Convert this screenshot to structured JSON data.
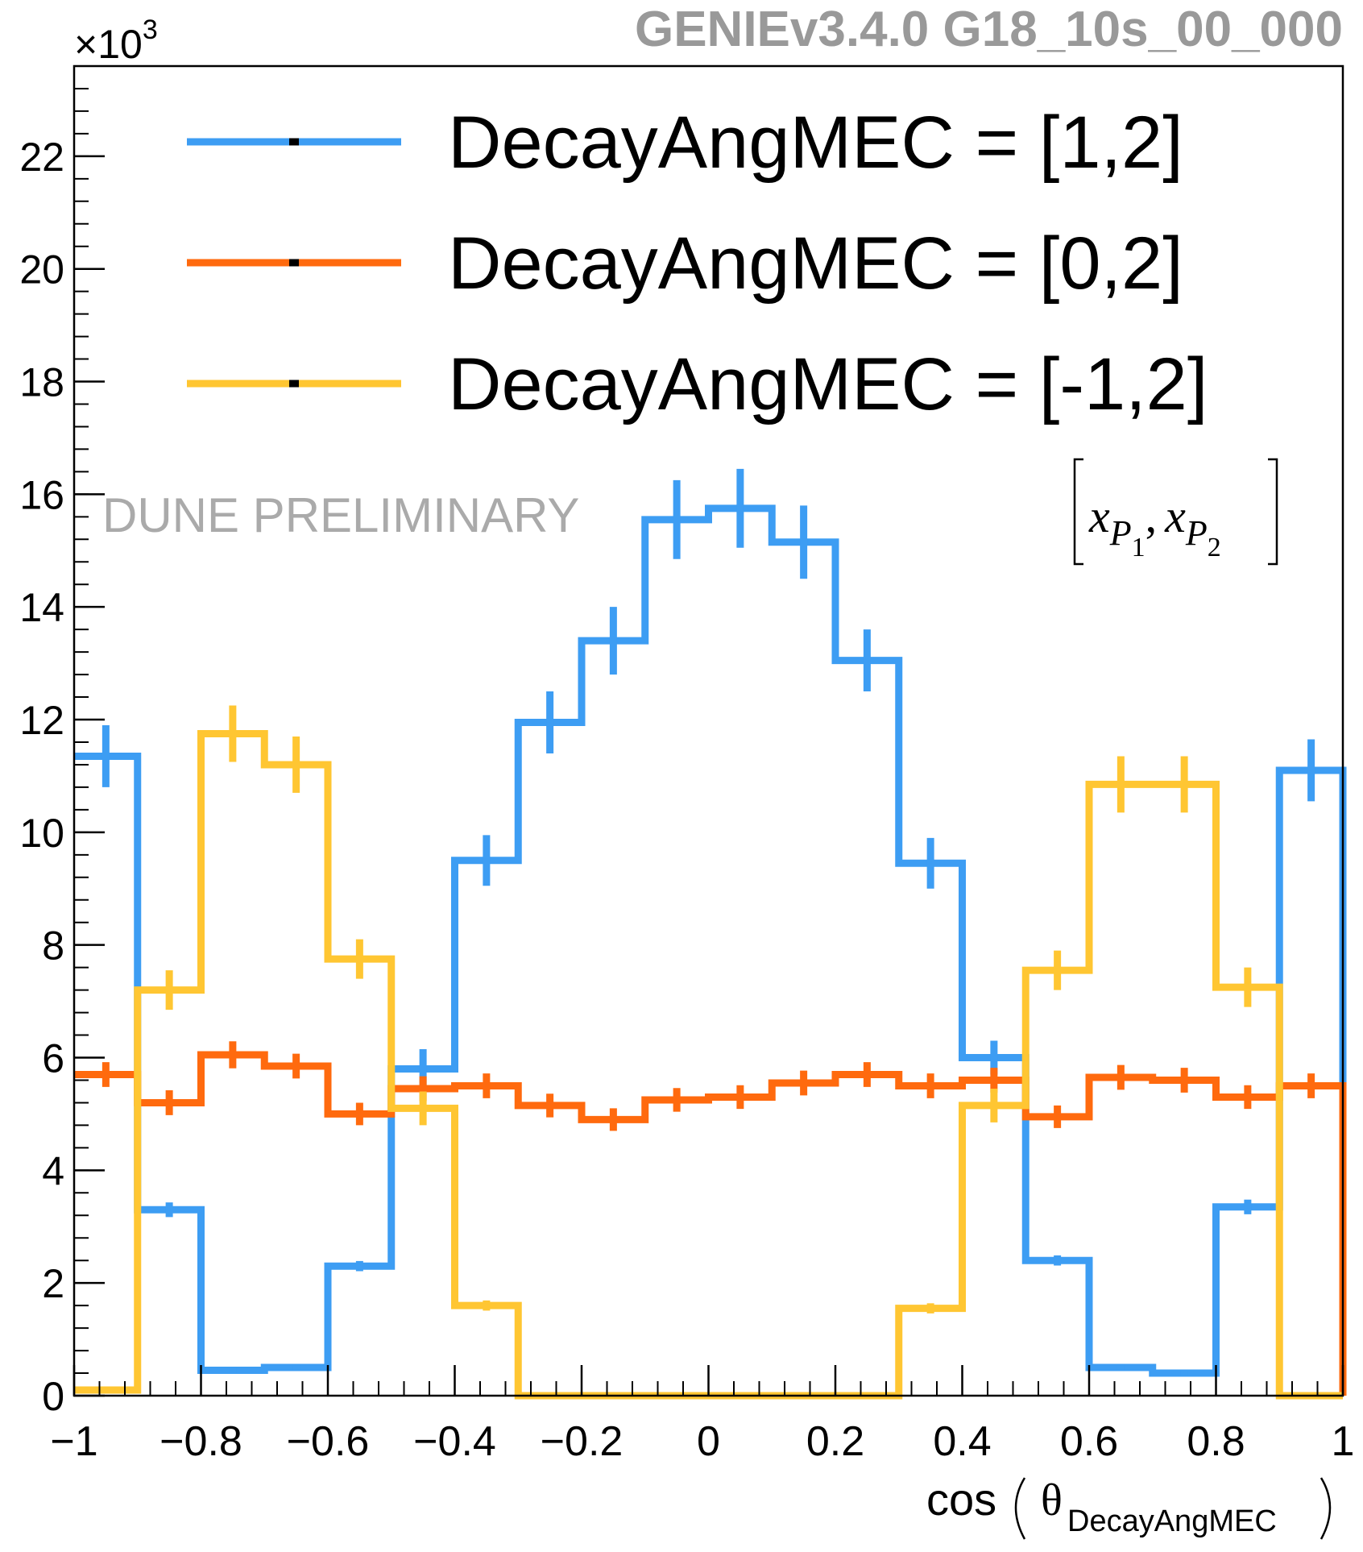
{
  "chart_data": {
    "type": "histogram-step",
    "title": "GENIEv3.4.0 G18_10s_00_000",
    "watermark": "DUNE PRELIMINARY",
    "xlabel_prefix": "cos",
    "xlabel_symbol": "θ",
    "xlabel_subscript": "DecayAngMEC",
    "ylabel": "",
    "y_multiplier": "×10",
    "y_multiplier_exp": "3",
    "xlim": [
      -1,
      1
    ],
    "ylim": [
      0,
      23.6
    ],
    "x_ticks": [
      -1,
      -0.8,
      -0.6,
      -0.4,
      -0.2,
      0,
      0.2,
      0.4,
      0.6,
      0.8,
      1
    ],
    "x_tick_labels": [
      "−1",
      "−0.8",
      "−0.6",
      "−0.4",
      "−0.2",
      "0",
      "0.2",
      "0.4",
      "0.6",
      "0.8",
      "1"
    ],
    "y_ticks": [
      0,
      2,
      4,
      6,
      8,
      10,
      12,
      14,
      16,
      18,
      20,
      22
    ],
    "y_tick_labels": [
      "0",
      "2",
      "4",
      "6",
      "8",
      "10",
      "12",
      "14",
      "16",
      "18",
      "20",
      "22"
    ],
    "bin_edges": [
      -1.0,
      -0.9,
      -0.8,
      -0.7,
      -0.6,
      -0.5,
      -0.4,
      -0.3,
      -0.2,
      -0.1,
      0.0,
      0.1,
      0.2,
      0.3,
      0.4,
      0.5,
      0.6,
      0.7,
      0.8,
      0.9,
      1.0
    ],
    "legend_annotation": {
      "var": "x",
      "sub1": "P",
      "sub1_index": "1",
      "sub2": "P",
      "sub2_index": "2",
      "separator": ","
    },
    "series": [
      {
        "name": "DecayAngMEC = [1,2]",
        "color": "#3d9df3",
        "values": [
          11.35,
          3.3,
          0.45,
          0.5,
          2.3,
          5.8,
          9.5,
          11.95,
          13.4,
          15.55,
          15.75,
          15.15,
          13.05,
          9.45,
          6.0,
          2.4,
          0.5,
          0.4,
          3.35,
          11.1
        ],
        "errors": [
          0.55,
          0.13,
          0.05,
          0.05,
          0.09,
          0.35,
          0.45,
          0.55,
          0.6,
          0.7,
          0.7,
          0.65,
          0.55,
          0.45,
          0.3,
          0.09,
          0.05,
          0.05,
          0.13,
          0.55
        ]
      },
      {
        "name": "DecayAngMEC = [0,2]",
        "color": "#ff6a0e",
        "values": [
          5.7,
          5.2,
          6.05,
          5.85,
          5.0,
          5.45,
          5.5,
          5.15,
          4.9,
          5.25,
          5.3,
          5.55,
          5.7,
          5.5,
          5.6,
          4.95,
          5.65,
          5.6,
          5.3,
          5.5
        ],
        "errors": [
          0.22,
          0.22,
          0.24,
          0.22,
          0.2,
          0.22,
          0.22,
          0.21,
          0.2,
          0.21,
          0.21,
          0.22,
          0.22,
          0.22,
          0.22,
          0.2,
          0.22,
          0.22,
          0.21,
          0.22
        ]
      },
      {
        "name": "DecayAngMEC = [-1,2]",
        "color": "#ffc632",
        "values": [
          0.1,
          7.2,
          11.75,
          11.2,
          7.75,
          5.1,
          1.6,
          0.0,
          0.0,
          0.0,
          0.0,
          0.0,
          0.0,
          1.55,
          5.15,
          7.55,
          10.85,
          10.85,
          7.25,
          0.0
        ],
        "errors": [
          0.03,
          0.35,
          0.5,
          0.5,
          0.35,
          0.3,
          0.09,
          0.0,
          0.0,
          0.0,
          0.0,
          0.0,
          0.0,
          0.09,
          0.3,
          0.35,
          0.5,
          0.5,
          0.35,
          0.0
        ]
      }
    ]
  }
}
